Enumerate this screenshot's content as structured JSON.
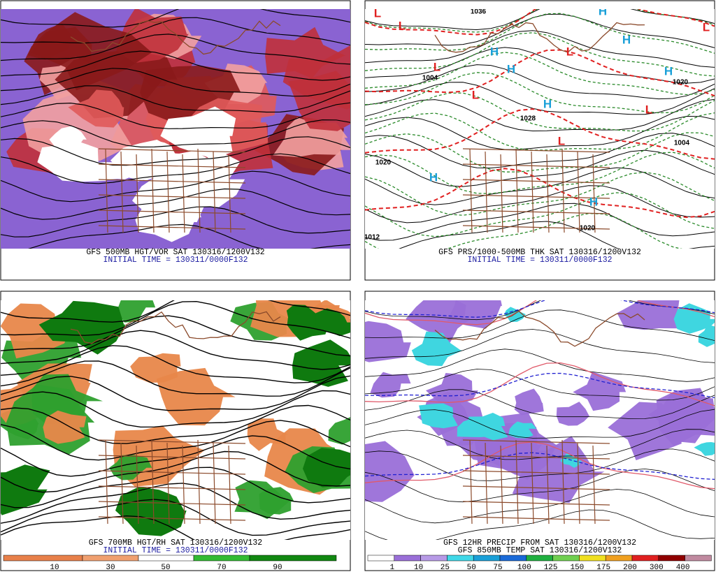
{
  "panels": [
    {
      "caption": [
        "GFS 500MB HGT/VOR SAT 130316/1200V132",
        "INITIAL TIME = 130311/0000F132"
      ]
    },
    {
      "caption": [
        "GFS PRS/1000-500MB THK SAT 130316/1200V132",
        "INITIAL TIME = 130311/0000F132"
      ],
      "map_labels": [
        "L",
        "L",
        "L",
        "L",
        "L",
        "L",
        "L",
        "L",
        "H",
        "H",
        "H",
        "H",
        "H",
        "H",
        "H",
        "H",
        "1036",
        "1004",
        "1028",
        "1020",
        "1020",
        "1004",
        "1020",
        "1012"
      ]
    },
    {
      "caption": [
        "GFS 700MB HGT/RH SAT 130316/1200V132",
        "INITIAL TIME = 130311/0000F132"
      ]
    },
    {
      "caption": [
        "GFS 12HR PRECIP FROM SAT 130316/1200V132",
        "GFS 850MB TEMP SAT 130316/1200V132"
      ]
    }
  ],
  "colorbars": [
    {
      "labels": [
        "10",
        "30",
        "50",
        "70",
        "90"
      ]
    },
    {
      "labels": [
        "1",
        "10",
        "25",
        "50",
        "75",
        "100",
        "125",
        "150",
        "175",
        "200",
        "300",
        "400"
      ]
    }
  ]
}
